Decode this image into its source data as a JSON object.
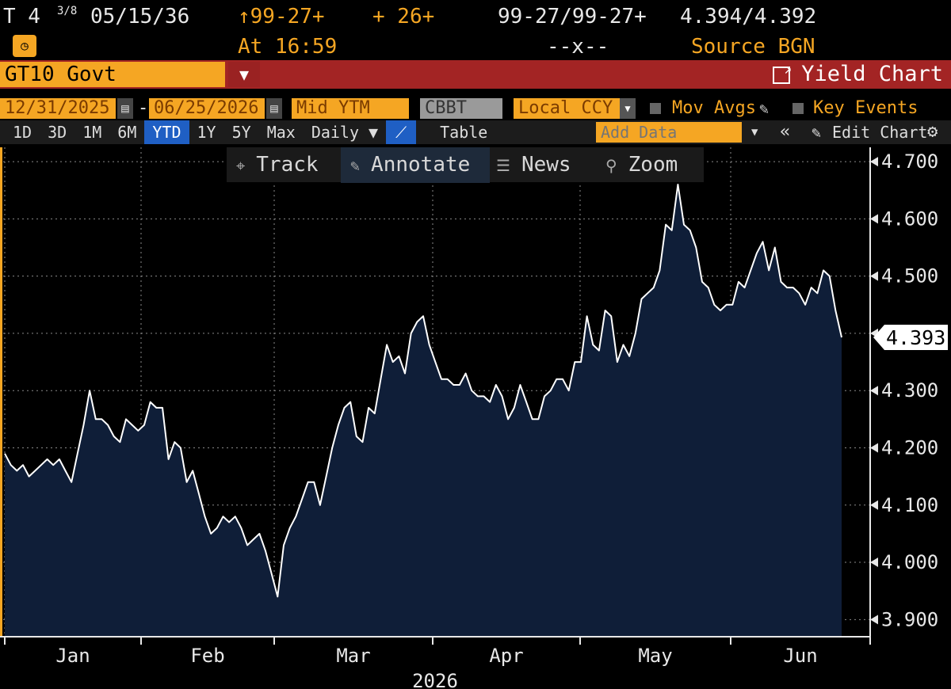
{
  "header": {
    "ticker": "T 4",
    "coupon_frac": "3/8",
    "maturity": "05/15/36",
    "price": "↑99-27+",
    "change": "+ 26+",
    "bid_ask_price": "99-27/99-27+",
    "bid_ask_yield": "4.394/4.392",
    "time": "At 16:59",
    "spread": "--x--",
    "source": "Source BGN"
  },
  "security": {
    "name": "GT10 Govt",
    "dropdown_glyph": "▼",
    "title": "Yield Chart"
  },
  "settings": {
    "start_date": "12/31/2025",
    "dash": "-",
    "end_date": "06/25/2026",
    "field": "Mid YTM",
    "pricing": "CBBT",
    "currency": "Local CCY",
    "mov_avgs": "Mov Avgs",
    "key_events": "Key Events"
  },
  "periods": {
    "buttons": [
      "1D",
      "3D",
      "1M",
      "6M",
      "YTD",
      "1Y",
      "5Y",
      "Max"
    ],
    "selected": "YTD",
    "frequency": "Daily ▼",
    "table": "Table",
    "add_data_placeholder": "Add Data",
    "edit_chart": "Edit Chart"
  },
  "tools": {
    "track": "Track",
    "annotate": "Annotate",
    "news": "News",
    "zoom": "Zoom"
  },
  "colors": {
    "amber": "#f5a623",
    "header_red": "#a32424",
    "selected_blue": "#1f5fc4",
    "area_fill": "#0f1e38",
    "line": "#ffffff"
  },
  "chart_data": {
    "type": "area",
    "xlabel": "2026",
    "ylabel": "",
    "ylim": [
      3.87,
      4.725
    ],
    "yticks": [
      "4.700",
      "4.600",
      "4.500",
      "4.400",
      "4.300",
      "4.200",
      "4.100",
      "4.000",
      "3.900"
    ],
    "ytick_values": [
      4.7,
      4.6,
      4.5,
      4.4,
      4.3,
      4.2,
      4.1,
      4.0,
      3.9
    ],
    "months": [
      "Jan",
      "Feb",
      "Mar",
      "Apr",
      "May",
      "Jun"
    ],
    "last_value": "4.393",
    "grid": true,
    "series": [
      {
        "values": [
          4.19,
          4.17,
          4.16,
          4.17,
          4.15,
          4.16,
          4.17,
          4.18,
          4.17,
          4.18,
          4.16,
          4.14,
          4.19,
          4.24,
          4.3,
          4.25,
          4.25,
          4.24,
          4.22,
          4.21,
          4.25,
          4.24,
          4.23,
          4.24,
          4.28,
          4.27,
          4.27,
          4.18,
          4.21,
          4.2,
          4.14,
          4.16,
          4.12,
          4.08,
          4.05,
          4.06,
          4.08,
          4.07,
          4.08,
          4.06,
          4.03,
          4.04,
          4.05,
          4.02,
          3.98,
          3.94,
          4.03,
          4.06,
          4.08,
          4.11,
          4.14,
          4.14,
          4.1,
          4.15,
          4.2,
          4.24,
          4.27,
          4.28,
          4.22,
          4.21,
          4.27,
          4.26,
          4.32,
          4.38,
          4.35,
          4.36,
          4.33,
          4.4,
          4.42,
          4.43,
          4.38,
          4.35,
          4.32,
          4.32,
          4.31,
          4.31,
          4.33,
          4.3,
          4.29,
          4.29,
          4.28,
          4.31,
          4.29,
          4.25,
          4.27,
          4.31,
          4.28,
          4.25,
          4.25,
          4.29,
          4.3,
          4.32,
          4.32,
          4.3,
          4.35,
          4.35,
          4.43,
          4.38,
          4.37,
          4.44,
          4.43,
          4.35,
          4.38,
          4.36,
          4.4,
          4.46,
          4.47,
          4.48,
          4.51,
          4.59,
          4.58,
          4.66,
          4.59,
          4.58,
          4.55,
          4.49,
          4.48,
          4.45,
          4.44,
          4.45,
          4.45,
          4.49,
          4.48,
          4.51,
          4.54,
          4.56,
          4.51,
          4.55,
          4.49,
          4.48,
          4.48,
          4.47,
          4.45,
          4.48,
          4.47,
          4.51,
          4.5,
          4.44,
          4.393
        ]
      }
    ]
  }
}
